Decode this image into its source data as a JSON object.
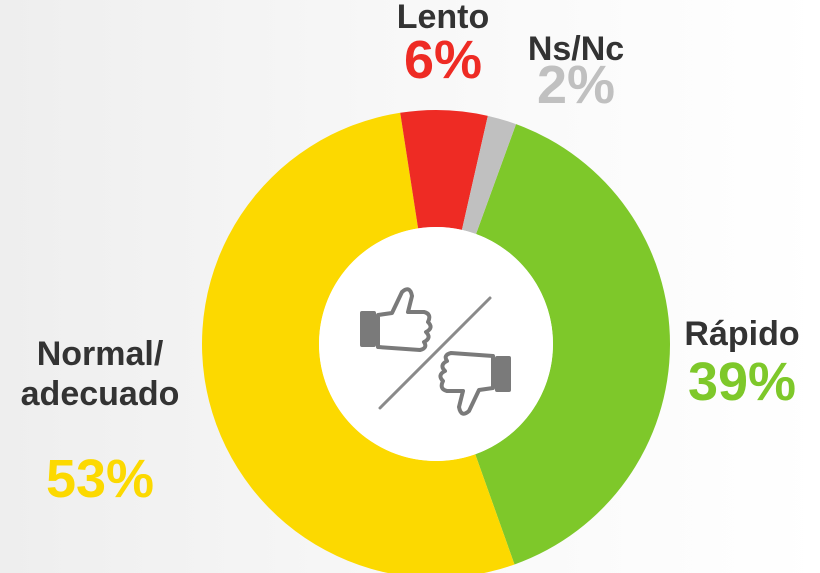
{
  "chart_data": {
    "type": "pie",
    "donut": true,
    "categories": [
      "Rápido",
      "Normal/ adecuado",
      "Lento",
      "Ns/Nc"
    ],
    "values": [
      39,
      53,
      6,
      2
    ],
    "value_labels": [
      "39%",
      "53%",
      "6%",
      "2%"
    ],
    "colors": [
      "#7ec82a",
      "#fcd900",
      "#ee2b24",
      "#c0c0c0"
    ]
  }
}
